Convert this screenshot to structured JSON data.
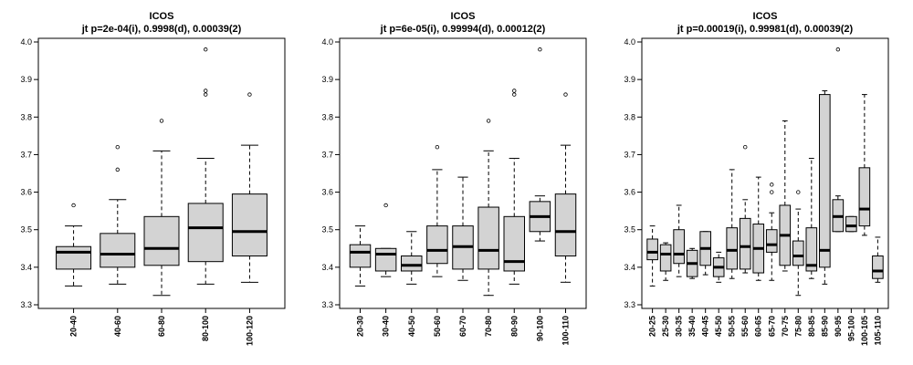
{
  "chart_data": [
    {
      "type": "box",
      "title": "ICOS",
      "subtitle": "jt p=2e-04(i), 0.9998(d), 0.00039(2)",
      "ylim": [
        3.3,
        4.0
      ],
      "yticks": [
        "3.3",
        "3.4",
        "3.5",
        "3.6",
        "3.7",
        "3.8",
        "3.9",
        "4.0"
      ],
      "categories": [
        "20-40",
        "40-60",
        "60-80",
        "80-100",
        "100-120"
      ],
      "boxes": [
        {
          "lw": 3.35,
          "q1": 3.395,
          "med": 3.44,
          "q3": 3.455,
          "uw": 3.51,
          "out": [
            3.565
          ]
        },
        {
          "lw": 3.355,
          "q1": 3.4,
          "med": 3.435,
          "q3": 3.49,
          "uw": 3.58,
          "out": [
            3.66,
            3.72
          ]
        },
        {
          "lw": 3.325,
          "q1": 3.405,
          "med": 3.45,
          "q3": 3.535,
          "uw": 3.71,
          "out": [
            3.79
          ]
        },
        {
          "lw": 3.355,
          "q1": 3.415,
          "med": 3.505,
          "q3": 3.57,
          "uw": 3.69,
          "out": [
            3.86,
            3.87,
            3.98
          ]
        },
        {
          "lw": 3.36,
          "q1": 3.43,
          "med": 3.495,
          "q3": 3.595,
          "uw": 3.725,
          "out": [
            3.86
          ]
        }
      ]
    },
    {
      "type": "box",
      "title": "ICOS",
      "subtitle": "jt p=6e-05(i), 0.99994(d), 0.00012(2)",
      "ylim": [
        3.3,
        4.0
      ],
      "yticks": [
        "3.3",
        "3.4",
        "3.5",
        "3.6",
        "3.7",
        "3.8",
        "3.9",
        "4.0"
      ],
      "categories": [
        "20-30",
        "30-40",
        "40-50",
        "50-60",
        "60-70",
        "70-80",
        "80-90",
        "90-100",
        "100-110"
      ],
      "boxes": [
        {
          "lw": 3.35,
          "q1": 3.4,
          "med": 3.44,
          "q3": 3.46,
          "uw": 3.51,
          "out": []
        },
        {
          "lw": 3.375,
          "q1": 3.39,
          "med": 3.435,
          "q3": 3.45,
          "uw": 3.45,
          "out": [
            3.565
          ]
        },
        {
          "lw": 3.355,
          "q1": 3.39,
          "med": 3.405,
          "q3": 3.43,
          "uw": 3.495,
          "out": []
        },
        {
          "lw": 3.375,
          "q1": 3.41,
          "med": 3.445,
          "q3": 3.51,
          "uw": 3.66,
          "out": [
            3.72
          ]
        },
        {
          "lw": 3.365,
          "q1": 3.395,
          "med": 3.455,
          "q3": 3.51,
          "uw": 3.64,
          "out": []
        },
        {
          "lw": 3.325,
          "q1": 3.395,
          "med": 3.445,
          "q3": 3.56,
          "uw": 3.71,
          "out": [
            3.79
          ]
        },
        {
          "lw": 3.355,
          "q1": 3.39,
          "med": 3.415,
          "q3": 3.535,
          "uw": 3.69,
          "out": [
            3.86,
            3.87
          ]
        },
        {
          "lw": 3.47,
          "q1": 3.495,
          "med": 3.535,
          "q3": 3.575,
          "uw": 3.59,
          "out": [
            3.98
          ]
        },
        {
          "lw": 3.36,
          "q1": 3.43,
          "med": 3.495,
          "q3": 3.595,
          "uw": 3.725,
          "out": [
            3.86
          ]
        }
      ]
    },
    {
      "type": "box",
      "title": "ICOS",
      "subtitle": "jt p=0.00019(i), 0.99981(d), 0.00039(2)",
      "ylim": [
        3.3,
        4.0
      ],
      "yticks": [
        "3.3",
        "3.4",
        "3.5",
        "3.6",
        "3.7",
        "3.8",
        "3.9",
        "4.0"
      ],
      "categories": [
        "20-25",
        "25-30",
        "30-35",
        "35-40",
        "40-45",
        "45-50",
        "50-55",
        "55-60",
        "60-65",
        "65-70",
        "70-75",
        "75-80",
        "80-85",
        "85-90",
        "90-95",
        "95-100",
        "100-105",
        "105-110"
      ],
      "boxes": [
        {
          "lw": 3.35,
          "q1": 3.42,
          "med": 3.44,
          "q3": 3.475,
          "uw": 3.51,
          "out": []
        },
        {
          "lw": 3.365,
          "q1": 3.39,
          "med": 3.435,
          "q3": 3.46,
          "uw": 3.465,
          "out": []
        },
        {
          "lw": 3.375,
          "q1": 3.41,
          "med": 3.435,
          "q3": 3.5,
          "uw": 3.565,
          "out": []
        },
        {
          "lw": 3.37,
          "q1": 3.375,
          "med": 3.41,
          "q3": 3.445,
          "uw": 3.45,
          "out": []
        },
        {
          "lw": 3.38,
          "q1": 3.405,
          "med": 3.45,
          "q3": 3.495,
          "uw": 3.495,
          "out": []
        },
        {
          "lw": 3.36,
          "q1": 3.375,
          "med": 3.4,
          "q3": 3.425,
          "uw": 3.44,
          "out": []
        },
        {
          "lw": 3.37,
          "q1": 3.395,
          "med": 3.445,
          "q3": 3.505,
          "uw": 3.66,
          "out": []
        },
        {
          "lw": 3.385,
          "q1": 3.395,
          "med": 3.455,
          "q3": 3.53,
          "uw": 3.58,
          "out": [
            3.72
          ]
        },
        {
          "lw": 3.365,
          "q1": 3.385,
          "med": 3.45,
          "q3": 3.515,
          "uw": 3.64,
          "out": []
        },
        {
          "lw": 3.365,
          "q1": 3.44,
          "med": 3.46,
          "q3": 3.5,
          "uw": 3.545,
          "out": [
            3.6,
            3.62
          ]
        },
        {
          "lw": 3.39,
          "q1": 3.405,
          "med": 3.485,
          "q3": 3.565,
          "uw": 3.79,
          "out": []
        },
        {
          "lw": 3.325,
          "q1": 3.405,
          "med": 3.43,
          "q3": 3.47,
          "uw": 3.555,
          "out": [
            3.6
          ]
        },
        {
          "lw": 3.37,
          "q1": 3.39,
          "med": 3.405,
          "q3": 3.505,
          "uw": 3.69,
          "out": []
        },
        {
          "lw": 3.355,
          "q1": 3.4,
          "med": 3.445,
          "q3": 3.86,
          "uw": 3.87,
          "out": []
        },
        {
          "lw": 3.495,
          "q1": 3.495,
          "med": 3.535,
          "q3": 3.58,
          "uw": 3.59,
          "out": [
            3.98
          ]
        },
        {
          "lw": 3.495,
          "q1": 3.495,
          "med": 3.51,
          "q3": 3.535,
          "uw": 3.535,
          "out": []
        },
        {
          "lw": 3.485,
          "q1": 3.51,
          "med": 3.555,
          "q3": 3.665,
          "uw": 3.86,
          "out": []
        },
        {
          "lw": 3.36,
          "q1": 3.37,
          "med": 3.39,
          "q3": 3.43,
          "uw": 3.48,
          "out": []
        }
      ]
    }
  ]
}
